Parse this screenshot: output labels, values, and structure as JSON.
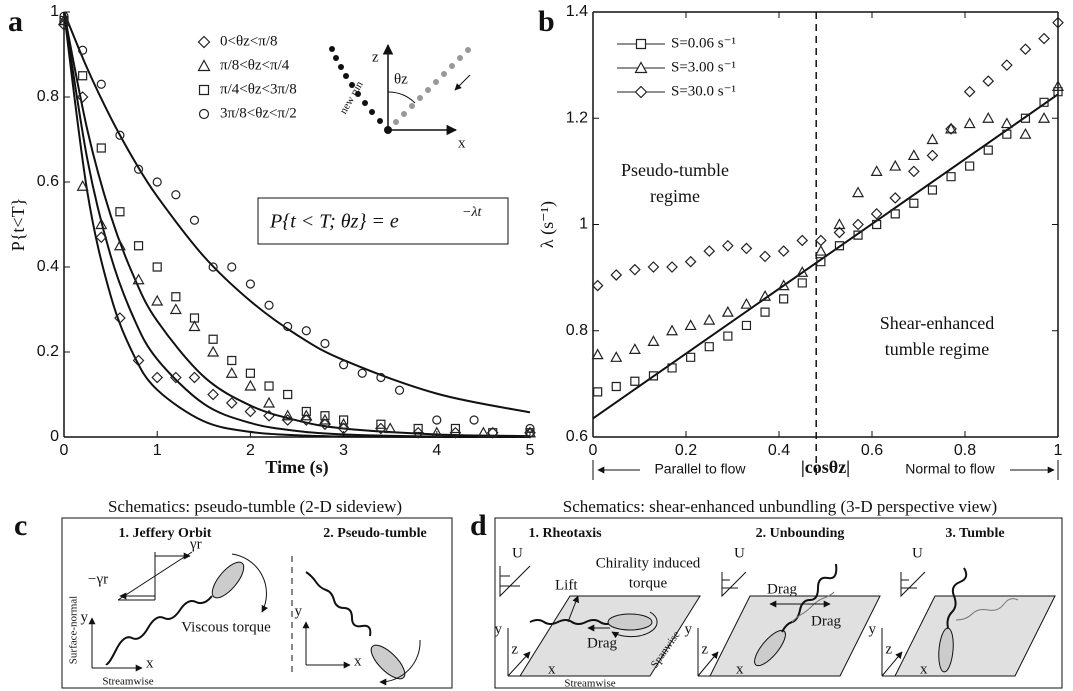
{
  "panel_labels": [
    "a",
    "b",
    "c",
    "d"
  ],
  "chart_data": [
    {
      "type": "scatter",
      "xlabel": "Time (s)",
      "ylabel": "P{t<T}",
      "xlim": [
        0,
        5
      ],
      "ylim": [
        0,
        1
      ],
      "xticks": [
        0,
        1,
        2,
        3,
        4,
        5
      ],
      "yticks": [
        0,
        0.2,
        0.4,
        0.6,
        0.8,
        1
      ],
      "legend": "upper center",
      "legend_lines": false,
      "box": false,
      "series": [
        {
          "name": "0<θz<π/8",
          "marker": "diamond",
          "color": "#222",
          "x": [
            0,
            0.2,
            0.4,
            0.6,
            0.8,
            1.0,
            1.2,
            1.4,
            1.6,
            1.8,
            2.0,
            2.2,
            2.4,
            2.6,
            2.8,
            3.0,
            3.4,
            3.8,
            4.2,
            4.6,
            5.0
          ],
          "values": [
            0.97,
            0.8,
            0.47,
            0.28,
            0.18,
            0.14,
            0.14,
            0.14,
            0.1,
            0.08,
            0.06,
            0.05,
            0.04,
            0.04,
            0.03,
            0.02,
            0.02,
            0.01,
            0.01,
            0.01,
            0.01
          ]
        },
        {
          "name": "π/8<θz<π/4",
          "marker": "triangle",
          "color": "#222",
          "x": [
            0,
            0.2,
            0.4,
            0.6,
            0.8,
            1.0,
            1.2,
            1.4,
            1.6,
            1.8,
            2.0,
            2.2,
            2.4,
            2.6,
            2.8,
            3.0,
            3.5,
            4.0,
            4.5,
            5.0
          ],
          "values": [
            0.98,
            0.59,
            0.5,
            0.45,
            0.37,
            0.32,
            0.3,
            0.26,
            0.2,
            0.15,
            0.12,
            0.08,
            0.05,
            0.05,
            0.04,
            0.03,
            0.02,
            0.01,
            0.01,
            0.01
          ]
        },
        {
          "name": "π/4<θz<3π/8",
          "marker": "square",
          "color": "#222",
          "x": [
            0,
            0.2,
            0.4,
            0.6,
            0.8,
            1.0,
            1.2,
            1.4,
            1.6,
            1.8,
            2.0,
            2.2,
            2.4,
            2.6,
            2.8,
            3.0,
            3.4,
            3.8,
            4.2,
            4.6,
            5.0
          ],
          "values": [
            0.98,
            0.85,
            0.68,
            0.53,
            0.45,
            0.4,
            0.33,
            0.28,
            0.23,
            0.18,
            0.15,
            0.12,
            0.1,
            0.06,
            0.05,
            0.04,
            0.03,
            0.02,
            0.02,
            0.01,
            0.01
          ]
        },
        {
          "name": "3π/8<θz<π/2",
          "marker": "circle",
          "color": "#222",
          "x": [
            0,
            0.2,
            0.4,
            0.6,
            0.8,
            1.0,
            1.2,
            1.4,
            1.6,
            1.8,
            2.0,
            2.2,
            2.4,
            2.6,
            2.8,
            3.0,
            3.2,
            3.4,
            3.6,
            4.0,
            4.4,
            5.0
          ],
          "values": [
            0.99,
            0.91,
            0.83,
            0.71,
            0.63,
            0.6,
            0.57,
            0.51,
            0.4,
            0.4,
            0.36,
            0.31,
            0.26,
            0.25,
            0.22,
            0.17,
            0.15,
            0.14,
            0.11,
            0.04,
            0.04,
            0.02
          ]
        }
      ],
      "fits": [
        {
          "x": [
            0,
            0.25,
            0.5,
            0.75,
            1,
            1.5,
            2,
            2.5,
            3,
            4,
            5
          ],
          "values": [
            1,
            0.577,
            0.333,
            0.192,
            0.111,
            0.037,
            0.012,
            0.004,
            0.001,
            0,
            0
          ]
        },
        {
          "x": [
            0,
            0.25,
            0.5,
            0.75,
            1,
            1.5,
            2,
            2.5,
            3,
            4,
            5
          ],
          "values": [
            1,
            0.654,
            0.427,
            0.279,
            0.183,
            0.078,
            0.033,
            0.014,
            0.006,
            0.001,
            0
          ]
        },
        {
          "x": [
            0,
            0.25,
            0.5,
            0.75,
            1,
            1.5,
            2,
            2.5,
            3,
            4,
            5
          ],
          "values": [
            1,
            0.723,
            0.522,
            0.377,
            0.273,
            0.142,
            0.074,
            0.039,
            0.02,
            0.006,
            0.002
          ]
        },
        {
          "x": [
            0,
            0.25,
            0.5,
            0.75,
            1,
            1.5,
            2,
            2.5,
            3,
            4,
            5
          ],
          "values": [
            1,
            0.867,
            0.752,
            0.652,
            0.566,
            0.425,
            0.32,
            0.24,
            0.181,
            0.102,
            0.058
          ]
        }
      ],
      "annotations": {
        "equation": "P{t < T; θz} = e",
        "exponent": "−λt",
        "inset": [
          "z",
          "θz",
          "x",
          "new run"
        ]
      }
    },
    {
      "type": "scatter",
      "xlabel": "|cosθz|",
      "ylabel": "λ (s⁻¹)",
      "xlim": [
        0,
        1
      ],
      "ylim": [
        0.6,
        1.4
      ],
      "xticks": [
        0,
        0.2,
        0.4,
        0.6,
        0.8,
        1
      ],
      "yticks": [
        0.6,
        0.8,
        1,
        1.2,
        1.4
      ],
      "legend": "upper left",
      "legend_lines": true,
      "box": true,
      "vline": 0.48,
      "series": [
        {
          "name": "S=0.06 s⁻¹",
          "marker": "square",
          "color": "#222",
          "x": [
            0.01,
            0.05,
            0.09,
            0.13,
            0.17,
            0.21,
            0.25,
            0.29,
            0.33,
            0.37,
            0.41,
            0.45,
            0.49,
            0.53,
            0.57,
            0.61,
            0.65,
            0.69,
            0.73,
            0.77,
            0.81,
            0.85,
            0.89,
            0.93,
            0.97,
            1.0
          ],
          "values": [
            0.685,
            0.695,
            0.705,
            0.715,
            0.73,
            0.75,
            0.77,
            0.79,
            0.81,
            0.835,
            0.86,
            0.89,
            0.93,
            0.96,
            0.98,
            1.0,
            1.02,
            1.04,
            1.065,
            1.09,
            1.11,
            1.14,
            1.17,
            1.2,
            1.23,
            1.25
          ]
        },
        {
          "name": "S=3.00 s⁻¹",
          "marker": "triangle",
          "color": "#222",
          "x": [
            0.01,
            0.05,
            0.09,
            0.13,
            0.17,
            0.21,
            0.25,
            0.29,
            0.33,
            0.37,
            0.41,
            0.45,
            0.49,
            0.53,
            0.57,
            0.61,
            0.65,
            0.69,
            0.73,
            0.77,
            0.81,
            0.85,
            0.89,
            0.93,
            0.97,
            1.0
          ],
          "values": [
            0.755,
            0.75,
            0.765,
            0.78,
            0.8,
            0.81,
            0.82,
            0.835,
            0.85,
            0.865,
            0.885,
            0.91,
            0.95,
            1.0,
            1.06,
            1.1,
            1.11,
            1.13,
            1.16,
            1.18,
            1.19,
            1.2,
            1.19,
            1.17,
            1.2,
            1.26
          ]
        },
        {
          "name": "S=30.0 s⁻¹",
          "marker": "diamond",
          "color": "#222",
          "x": [
            0.01,
            0.05,
            0.09,
            0.13,
            0.17,
            0.21,
            0.25,
            0.29,
            0.33,
            0.37,
            0.41,
            0.45,
            0.49,
            0.53,
            0.57,
            0.61,
            0.65,
            0.69,
            0.73,
            0.77,
            0.81,
            0.85,
            0.89,
            0.93,
            0.97,
            1.0
          ],
          "values": [
            0.885,
            0.905,
            0.915,
            0.92,
            0.92,
            0.93,
            0.95,
            0.96,
            0.955,
            0.94,
            0.95,
            0.97,
            0.97,
            0.985,
            1.0,
            1.02,
            1.05,
            1.1,
            1.13,
            1.18,
            1.25,
            1.27,
            1.3,
            1.33,
            1.35,
            1.38
          ]
        }
      ],
      "fits": [
        {
          "x": [
            0,
            1
          ],
          "values": [
            0.635,
            1.245
          ]
        }
      ],
      "annotations": [
        "Pseudo-tumble",
        "regime",
        "Shear-enhanced",
        "tumble regime",
        "Parallel to flow",
        "Normal to flow"
      ]
    }
  ],
  "schematic_c": {
    "title": "Schematics: pseudo-tumble (2-D sideview)",
    "steps": [
      "1. Jeffery Orbit",
      "2. Pseudo-tumble"
    ],
    "labels": [
      "γr",
      "−γr",
      "Viscous torque",
      "y",
      "x",
      "Surface-normal",
      "Streamwise",
      "y",
      "x"
    ]
  },
  "schematic_d": {
    "title": "Schematics: shear-enhanced unbundling (3-D perspective view)",
    "steps": [
      "1. Rheotaxis",
      "2. Unbounding",
      "3. Tumble"
    ],
    "labels": [
      "U",
      "Lift",
      "Chirality induced",
      "torque",
      "Drag",
      "Spanwise",
      "y",
      "z",
      "x",
      "Streamwise",
      "U",
      "Drag",
      "Drag",
      "y",
      "z",
      "x",
      "U",
      "y",
      "z",
      "x"
    ]
  }
}
